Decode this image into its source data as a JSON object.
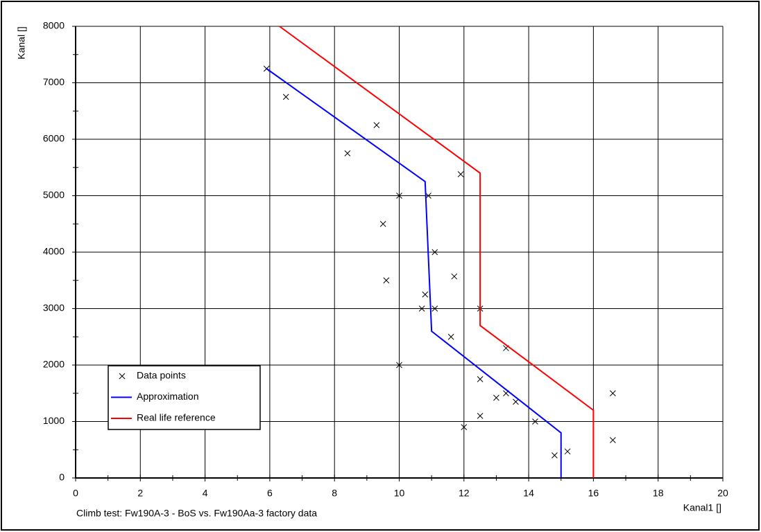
{
  "chart_data": {
    "type": "scatter",
    "caption": "Climb test: Fw190A-3 - BoS vs. Fw190Aa-3 factory data",
    "xlabel": "Kanal1 []",
    "ylabel": "Kanal []",
    "xlim": [
      0,
      20
    ],
    "ylim": [
      0,
      8000
    ],
    "xticks": [
      0,
      2,
      4,
      6,
      8,
      10,
      12,
      14,
      16,
      18,
      20
    ],
    "yticks": [
      0,
      1000,
      2000,
      3000,
      4000,
      5000,
      6000,
      7000,
      8000
    ],
    "grid": true,
    "legend": "lower left",
    "series": [
      {
        "name": "Data points",
        "style": "markers",
        "color": "#000000",
        "x": [
          5.9,
          6.5,
          9.3,
          8.4,
          11.9,
          10,
          10.9,
          9.5,
          11.1,
          11.7,
          9.6,
          10.8,
          10.7,
          11.1,
          12.5,
          11.6,
          13.3,
          10,
          12.5,
          16.6,
          13.3,
          13,
          13.6,
          12.5,
          14.2,
          12,
          16.6,
          15.2,
          14.8
        ],
        "values": [
          7250,
          6750,
          6250,
          5750,
          5380,
          5000,
          5000,
          4500,
          4000,
          3570,
          3500,
          3250,
          3000,
          3000,
          3000,
          2500,
          2300,
          2000,
          1750,
          1500,
          1500,
          1420,
          1350,
          1100,
          1000,
          900,
          670,
          470,
          400
        ]
      },
      {
        "name": "Approximation",
        "style": "line",
        "color": "#0000ff",
        "x": [
          5.9,
          10.8,
          11,
          15,
          15
        ],
        "values": [
          7250,
          5250,
          2600,
          800,
          0
        ]
      },
      {
        "name": "Real life reference",
        "style": "line",
        "color": "#ff0000",
        "x": [
          6.3,
          12.5,
          12.5,
          16,
          16
        ],
        "values": [
          8000,
          5400,
          2700,
          1200,
          0
        ]
      }
    ]
  }
}
